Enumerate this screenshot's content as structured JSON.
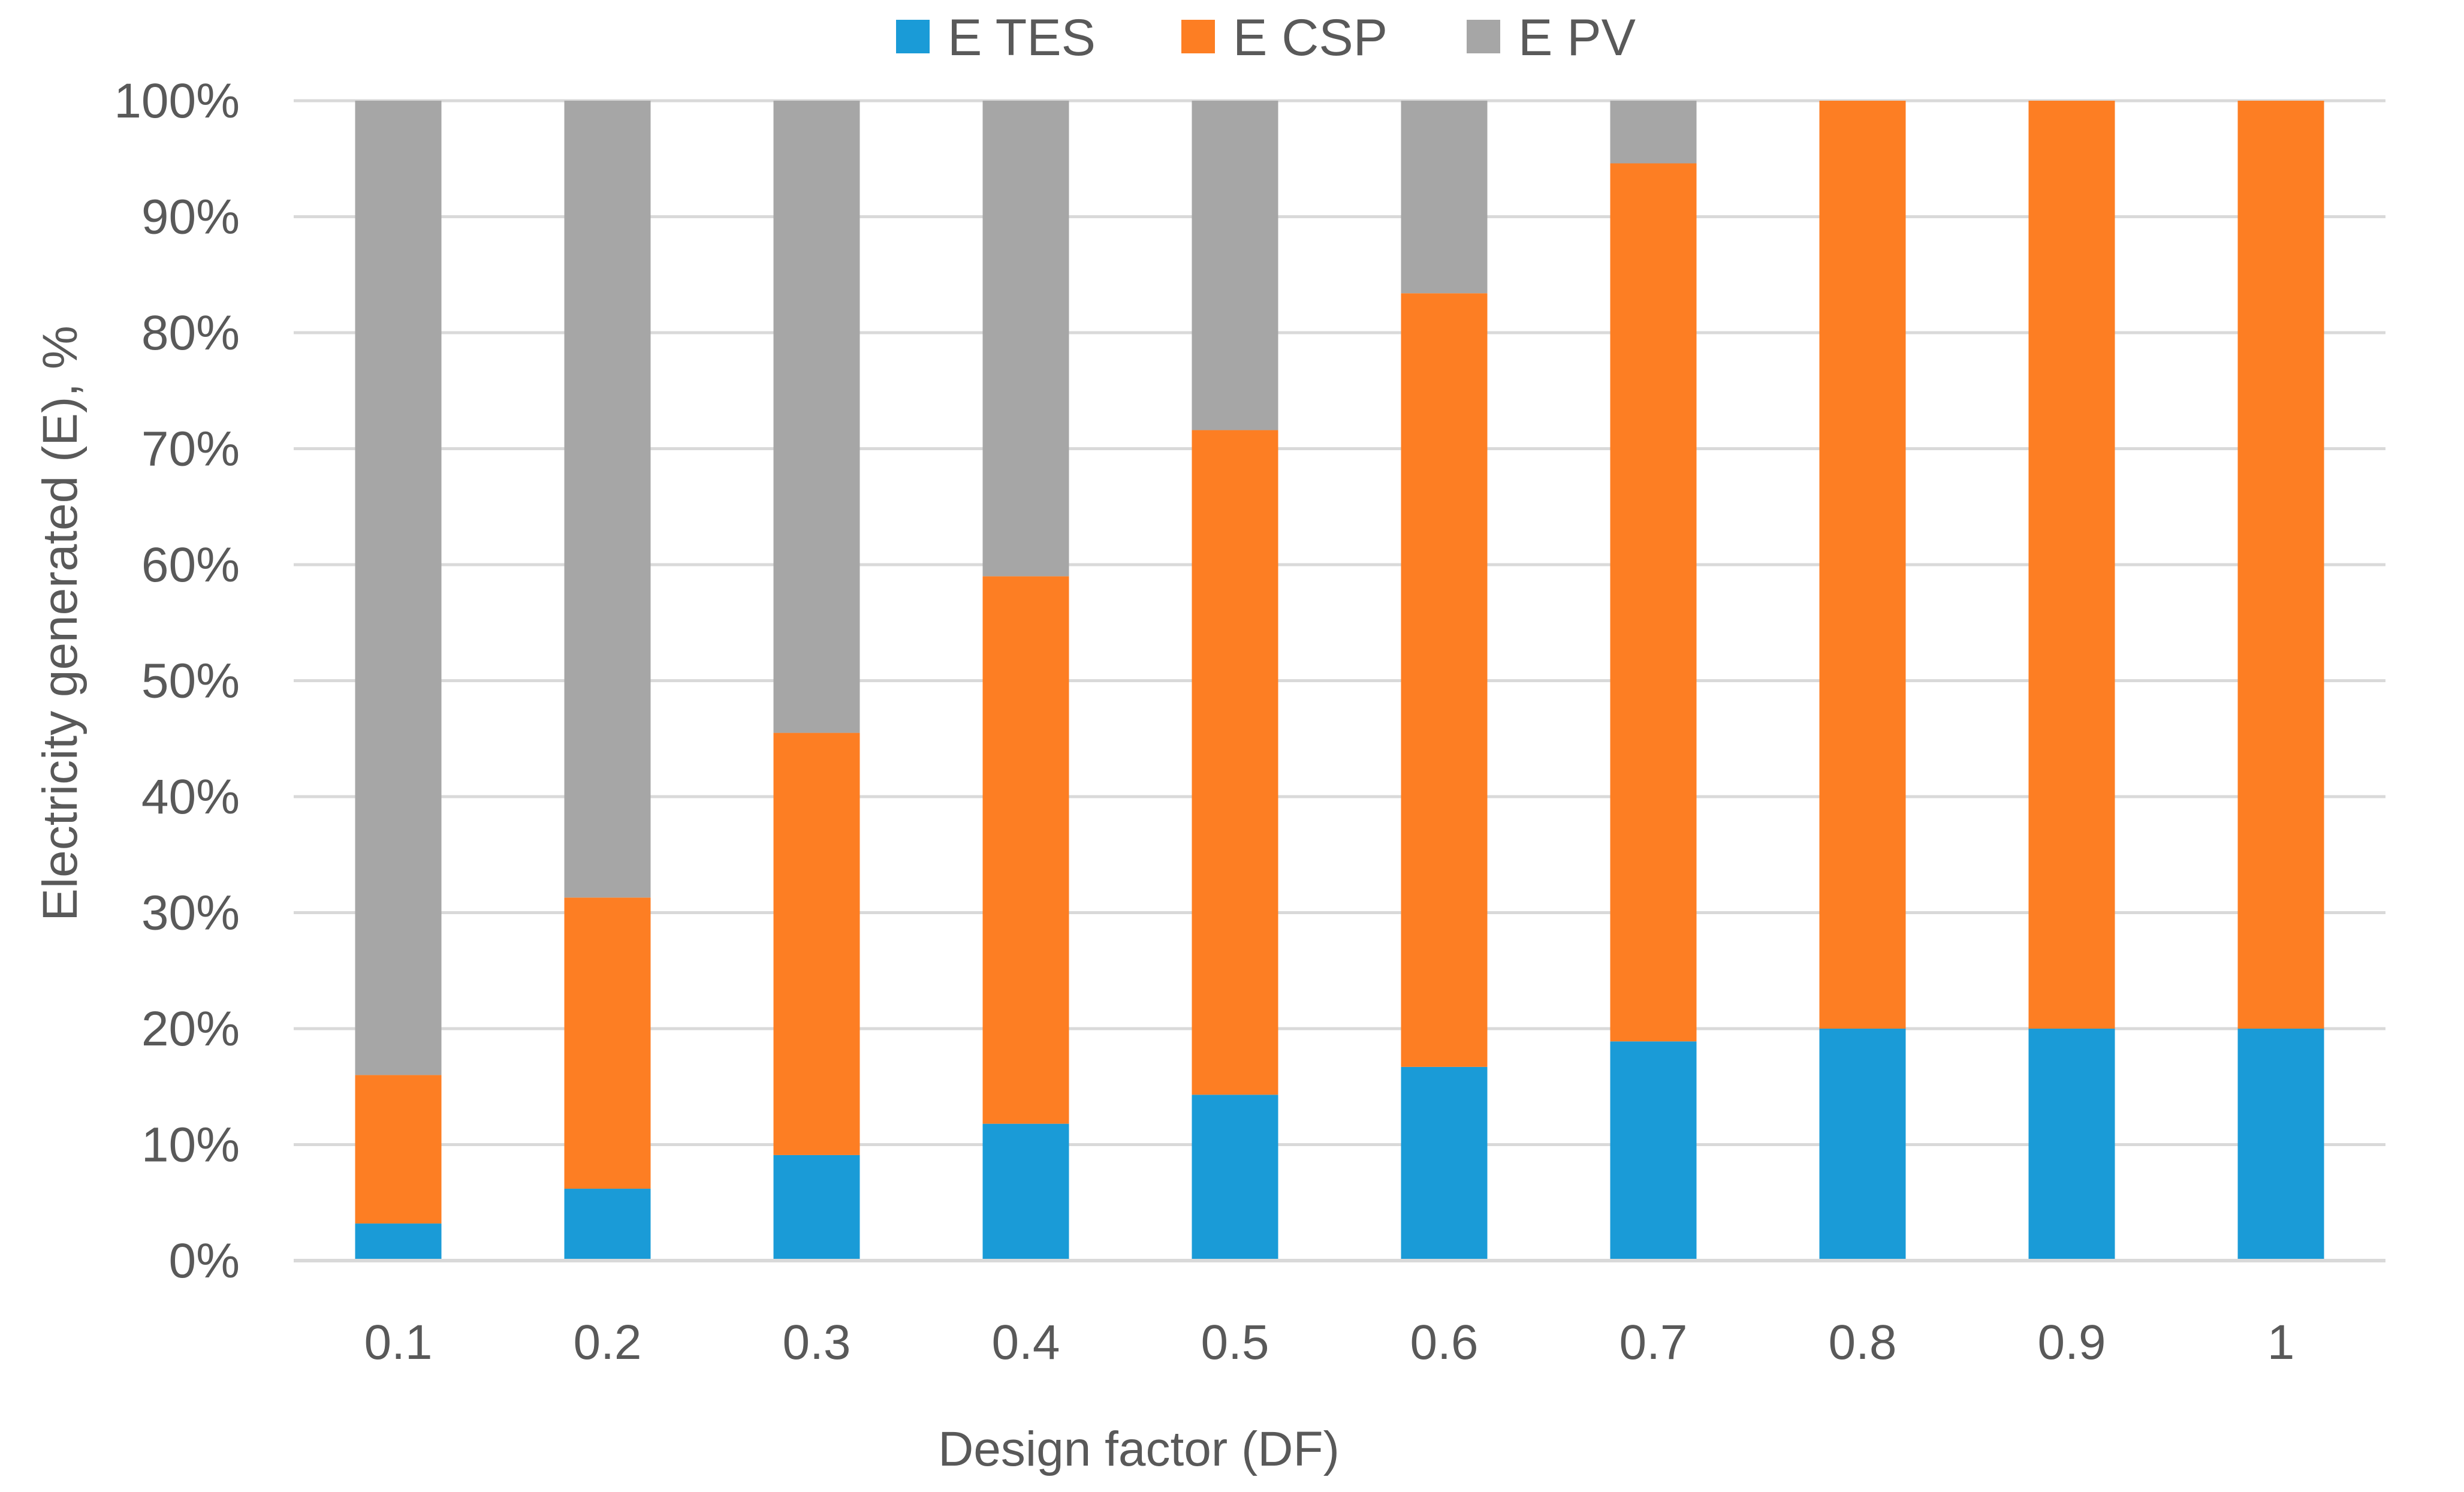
{
  "chart_data": {
    "type": "bar",
    "stacked": true,
    "title": "",
    "xlabel": "Design factor (DF)",
    "ylabel": "Electricity generated (E), %",
    "categories": [
      "0.1",
      "0.2",
      "0.3",
      "0.4",
      "0.5",
      "0.6",
      "0.7",
      "0.8",
      "0.9",
      "1"
    ],
    "series": [
      {
        "name": "E TES",
        "color": "#1a9bd7",
        "values": [
          3.2,
          6.2,
          9.1,
          11.8,
          14.3,
          16.7,
          18.9,
          20.0,
          20.0,
          20.0
        ]
      },
      {
        "name": "E CSP",
        "color": "#fd7e23",
        "values": [
          12.8,
          25.1,
          36.4,
          47.2,
          57.3,
          66.7,
          75.7,
          80.0,
          80.0,
          80.0
        ]
      },
      {
        "name": "E PV",
        "color": "#a6a6a6",
        "values": [
          84.0,
          68.7,
          54.5,
          41.0,
          28.4,
          16.6,
          5.4,
          0.0,
          0.0,
          0.0
        ]
      }
    ],
    "ylim": [
      0,
      100
    ],
    "yticks": [
      0,
      10,
      20,
      30,
      40,
      50,
      60,
      70,
      80,
      90,
      100
    ],
    "ytick_labels": [
      "0%",
      "10%",
      "20%",
      "30%",
      "40%",
      "50%",
      "60%",
      "70%",
      "80%",
      "90%",
      "100%"
    ],
    "grid": true,
    "legend_position": "top-center"
  }
}
